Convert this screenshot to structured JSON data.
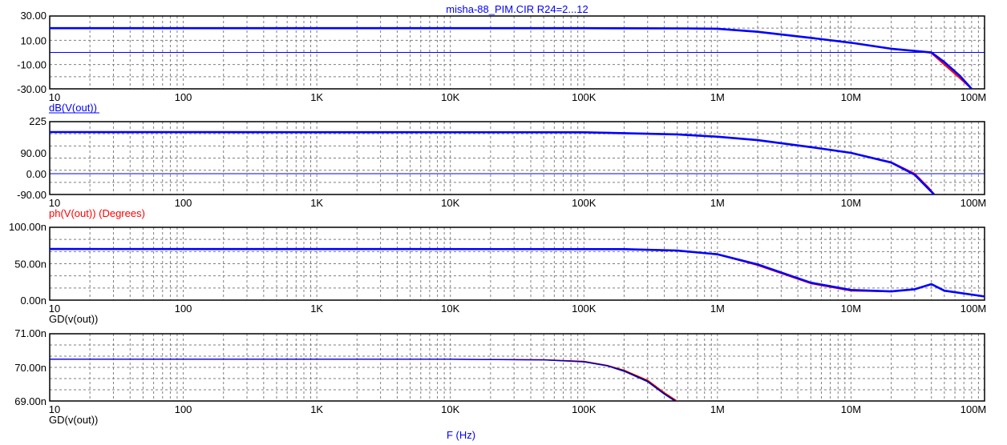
{
  "title": "misha-88_PIM.CIR R24=2...12",
  "xlabel": "F (Hz)",
  "x_tick_labels": [
    "10",
    "100",
    "1K",
    "10K",
    "100K",
    "1M",
    "10M",
    "100M"
  ],
  "colors": {
    "axis": "#000000",
    "grid": "#7f7f7f",
    "trace_blue": "#0000ff",
    "trace_red": "#ff0000",
    "trace_black": "#000000",
    "label_blue": "#0000ff",
    "label_red": "#ff0000",
    "label_black": "#000000"
  },
  "chart_data": [
    {
      "type": "line",
      "x_scale": "log",
      "xlim": [
        10,
        100000000
      ],
      "ylim": [
        -30,
        30
      ],
      "y_ticks": [
        30,
        10,
        -10,
        -30
      ],
      "y_tick_labels": [
        "30.00",
        "10.00",
        "-10.00",
        "-30.00"
      ],
      "ylabel": "dB(V(out))",
      "ylabel_color": "blue",
      "zero_line": true,
      "series": [
        {
          "color": "red",
          "x": [
            10,
            100000,
            600000,
            1000000,
            2000000,
            5000000,
            10000000,
            20000000,
            35000000,
            40000000,
            50000000,
            65000000,
            80000000
          ],
          "y": [
            20,
            20,
            19.8,
            19.5,
            17,
            12,
            8,
            3,
            0.5,
            -0.5,
            -10,
            -21,
            -30
          ]
        },
        {
          "color": "blue",
          "x": [
            10,
            100000,
            600000,
            1000000,
            2000000,
            5000000,
            10000000,
            20000000,
            35000000,
            40000000,
            50000000,
            65000000,
            80000000
          ],
          "y": [
            20,
            20,
            19.8,
            19.5,
            17,
            12,
            8,
            3,
            0.5,
            0,
            -8,
            -19,
            -30
          ]
        }
      ]
    },
    {
      "type": "line",
      "x_scale": "log",
      "xlim": [
        10,
        100000000
      ],
      "ylim": [
        -90,
        225
      ],
      "y_ticks": [
        225,
        90,
        0,
        -90
      ],
      "y_tick_labels": [
        "225",
        "90.00",
        "0.00",
        "-90.00"
      ],
      "ylabel": "ph(V(out)) (Degrees)",
      "ylabel_color": "red",
      "zero_line": true,
      "series": [
        {
          "color": "red",
          "x": [
            10,
            100000,
            200000,
            500000,
            1000000,
            2000000,
            5000000,
            10000000,
            20000000,
            30000000,
            38000000,
            42000000
          ],
          "y": [
            180,
            179,
            175,
            170,
            160,
            145,
            115,
            90,
            50,
            0,
            -60,
            -90
          ]
        },
        {
          "color": "blue",
          "x": [
            10,
            100000,
            200000,
            500000,
            1000000,
            2000000,
            5000000,
            10000000,
            20000000,
            30000000,
            38000000,
            42000000
          ],
          "y": [
            180,
            179,
            175,
            170,
            160,
            145,
            115,
            90,
            48,
            -5,
            -65,
            -90
          ]
        }
      ]
    },
    {
      "type": "line",
      "x_scale": "log",
      "xlim": [
        10,
        100000000
      ],
      "ylim": [
        0,
        100
      ],
      "y_ticks": [
        100,
        50,
        0
      ],
      "y_tick_labels": [
        "100.00n",
        "50.00n",
        "0.00n"
      ],
      "ylabel": "GD(v(out))",
      "ylabel_color": "black",
      "zero_line": false,
      "series": [
        {
          "color": "red",
          "x": [
            10,
            200000,
            500000,
            1000000,
            2000000,
            5000000,
            10000000,
            20000000,
            30000000,
            40000000,
            50000000,
            100000000
          ],
          "y": [
            70.2,
            70,
            68,
            63,
            48,
            23,
            13,
            12,
            15,
            22,
            13,
            5
          ]
        },
        {
          "color": "blue",
          "x": [
            10,
            200000,
            500000,
            1000000,
            2000000,
            5000000,
            10000000,
            20000000,
            30000000,
            40000000,
            50000000,
            100000000
          ],
          "y": [
            70.2,
            70,
            68,
            63,
            49,
            24,
            14,
            12,
            15,
            22,
            13,
            5
          ]
        }
      ]
    },
    {
      "type": "line",
      "x_scale": "log",
      "xlim": [
        10,
        100000000
      ],
      "ylim": [
        69,
        71
      ],
      "y_ticks": [
        71,
        70,
        69
      ],
      "y_tick_labels": [
        "71.00n",
        "70.00n",
        "69.00n"
      ],
      "ylabel": "GD(v(out))",
      "ylabel_color": "black",
      "zero_line": false,
      "series": [
        {
          "color": "red",
          "x": [
            10,
            10000,
            50000,
            100000,
            150000,
            200000,
            300000,
            400000,
            500000
          ],
          "y": [
            70.24,
            70.24,
            70.23,
            70.18,
            70.06,
            69.92,
            69.62,
            69.25,
            69.0
          ]
        },
        {
          "color": "black",
          "x": [
            10,
            10000,
            50000,
            100000,
            150000,
            200000,
            300000,
            400000,
            500000
          ],
          "y": [
            70.24,
            70.24,
            70.225,
            70.17,
            70.05,
            69.9,
            69.59,
            69.22,
            68.97
          ]
        },
        {
          "color": "blue",
          "x": [
            10,
            10000,
            50000,
            100000,
            150000,
            200000,
            300000,
            400000,
            500000
          ],
          "y": [
            70.24,
            70.24,
            70.22,
            70.16,
            70.04,
            69.88,
            69.57,
            69.2,
            68.95
          ]
        }
      ]
    }
  ]
}
